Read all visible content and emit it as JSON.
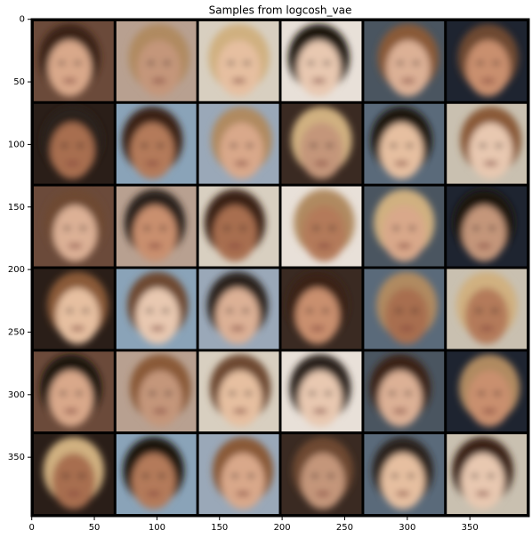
{
  "chart_data": {
    "type": "image",
    "title": "Samples from logcosh_vae",
    "xlim": [
      -0.5,
      397.5
    ],
    "ylim": [
      397.5,
      -0.5
    ],
    "xticks": [
      0,
      50,
      100,
      150,
      200,
      250,
      300,
      350
    ],
    "yticks": [
      0,
      50,
      100,
      150,
      200,
      250,
      300,
      350
    ],
    "grid_rows": 6,
    "grid_cols": 6
  }
}
